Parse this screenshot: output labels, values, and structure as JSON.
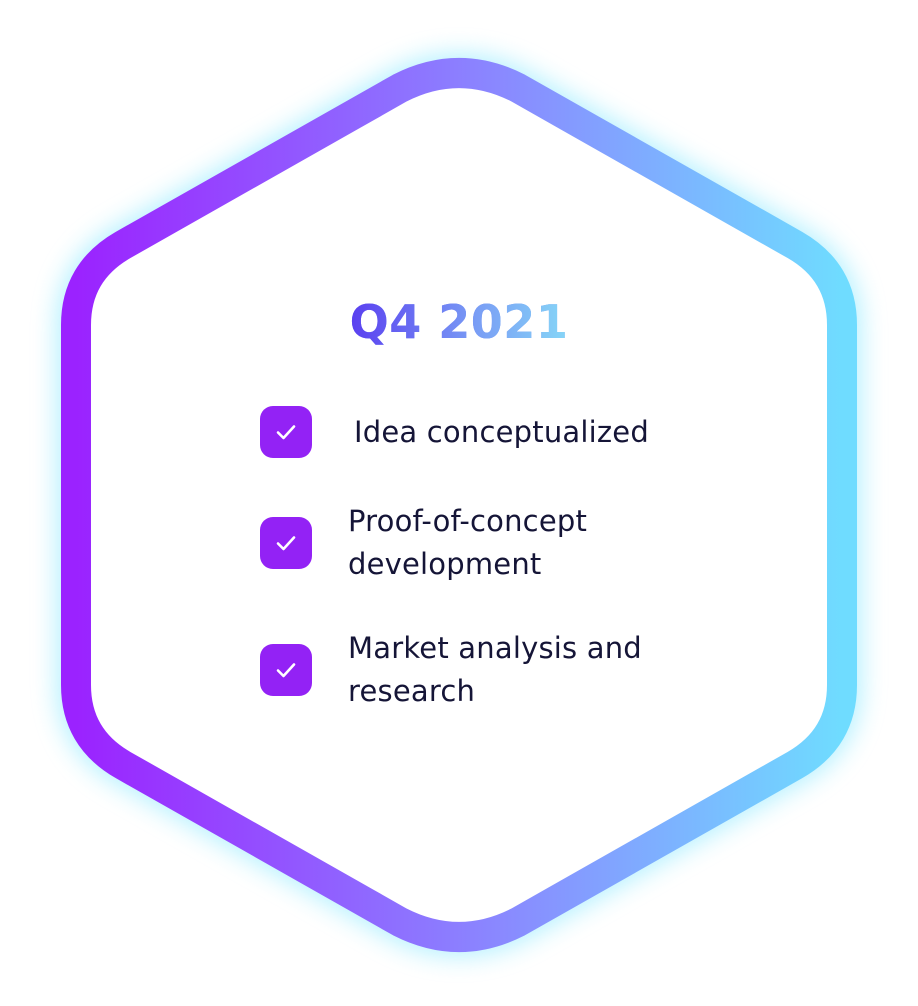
{
  "card": {
    "title": "Q4 2021",
    "items": [
      {
        "label": "Idea conceptualized",
        "checked": true
      },
      {
        "label": "Proof-of-concept development",
        "line1": "Proof-of-concept",
        "line2": "development",
        "checked": true
      },
      {
        "label": "Market analysis and research",
        "line1": "Market analysis and",
        "line2": "research",
        "checked": true
      }
    ]
  },
  "colors": {
    "border_start": "#9b22ff",
    "border_end": "#6fdcff",
    "glow": "#6fe4ff",
    "check_bg": "#9322f5",
    "text": "#151537",
    "title_start": "#5b3ff0",
    "title_end": "#86d6f7"
  }
}
